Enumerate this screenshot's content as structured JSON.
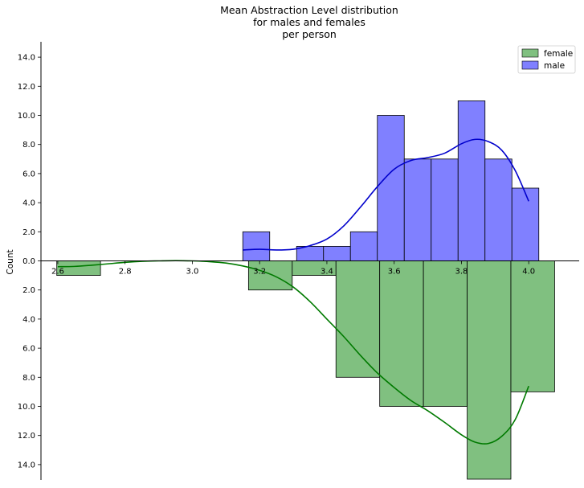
{
  "chart_data": {
    "type": "bar",
    "subtype": "mirrored histogram with KDE",
    "title_lines": [
      "Mean Abstraction Level distribution",
      "for males and females",
      "per person"
    ],
    "ylabel": "Count",
    "xlabel": "",
    "xlim": [
      2.55,
      4.15
    ],
    "ylim": [
      -15.2,
      15.1
    ],
    "x_ticks": [
      {
        "value": 2.6,
        "label": "2.6"
      },
      {
        "value": 2.8,
        "label": "2.8"
      },
      {
        "value": 3.0,
        "label": "3.0"
      },
      {
        "value": 3.2,
        "label": "3.2"
      },
      {
        "value": 3.4,
        "label": "3.4"
      },
      {
        "value": 3.6,
        "label": "3.6"
      },
      {
        "value": 3.8,
        "label": "3.8"
      },
      {
        "value": 4.0,
        "label": "4.0"
      }
    ],
    "y_ticks": [
      {
        "value": 14,
        "label": "14.0"
      },
      {
        "value": 12,
        "label": "12.0"
      },
      {
        "value": 10,
        "label": "10.0"
      },
      {
        "value": 8,
        "label": "8.0"
      },
      {
        "value": 6,
        "label": "6.0"
      },
      {
        "value": 4,
        "label": "4.0"
      },
      {
        "value": 2,
        "label": "2.0"
      },
      {
        "value": 0,
        "label": "0.0"
      },
      {
        "value": -2,
        "label": "2.0"
      },
      {
        "value": -4,
        "label": "4.0"
      },
      {
        "value": -6,
        "label": "6.0"
      },
      {
        "value": -8,
        "label": "8.0"
      },
      {
        "value": -10,
        "label": "10.0"
      },
      {
        "value": -12,
        "label": "12.0"
      },
      {
        "value": -14,
        "label": "14.0"
      }
    ],
    "legend_position": "top-right",
    "legend": [
      {
        "label": "female",
        "color": "#008000"
      },
      {
        "label": "male",
        "color": "#0000ff"
      }
    ],
    "series": [
      {
        "name": "male",
        "direction": "up",
        "fill": "#8080ff",
        "line_color": "#0000cc",
        "bins": [
          {
            "x0": 3.15,
            "x1": 3.23,
            "count": 2
          },
          {
            "x0": 3.31,
            "x1": 3.39,
            "count": 1
          },
          {
            "x0": 3.39,
            "x1": 3.47,
            "count": 1
          },
          {
            "x0": 3.47,
            "x1": 3.55,
            "count": 2
          },
          {
            "x0": 3.55,
            "x1": 3.63,
            "count": 10
          },
          {
            "x0": 3.63,
            "x1": 3.71,
            "count": 7
          },
          {
            "x0": 3.71,
            "x1": 3.79,
            "count": 7
          },
          {
            "x0": 3.79,
            "x1": 3.87,
            "count": 11
          },
          {
            "x0": 3.87,
            "x1": 3.95,
            "count": 7
          },
          {
            "x0": 3.95,
            "x1": 4.03,
            "count": 5
          }
        ],
        "kde": [
          [
            3.15,
            0.75
          ],
          [
            3.2,
            0.8
          ],
          [
            3.25,
            0.75
          ],
          [
            3.3,
            0.8
          ],
          [
            3.35,
            1.05
          ],
          [
            3.4,
            1.5
          ],
          [
            3.45,
            2.4
          ],
          [
            3.5,
            3.7
          ],
          [
            3.55,
            5.1
          ],
          [
            3.6,
            6.3
          ],
          [
            3.65,
            6.9
          ],
          [
            3.7,
            7.1
          ],
          [
            3.75,
            7.4
          ],
          [
            3.8,
            8.05
          ],
          [
            3.84,
            8.35
          ],
          [
            3.88,
            8.2
          ],
          [
            3.92,
            7.6
          ],
          [
            3.96,
            6.2
          ],
          [
            4.0,
            4.1
          ]
        ]
      },
      {
        "name": "female",
        "direction": "down",
        "fill": "#80c080",
        "line_color": "#007a00",
        "bins": [
          {
            "x0": 2.597,
            "x1": 2.727,
            "count": 1
          },
          {
            "x0": 3.167,
            "x1": 3.297,
            "count": 2
          },
          {
            "x0": 3.297,
            "x1": 3.427,
            "count": 1
          },
          {
            "x0": 3.427,
            "x1": 3.557,
            "count": 8
          },
          {
            "x0": 3.557,
            "x1": 3.687,
            "count": 10
          },
          {
            "x0": 3.687,
            "x1": 3.817,
            "count": 10
          },
          {
            "x0": 3.817,
            "x1": 3.947,
            "count": 15
          },
          {
            "x0": 3.947,
            "x1": 4.077,
            "count": 9
          }
        ],
        "kde": [
          [
            2.6,
            0.4
          ],
          [
            2.65,
            0.38
          ],
          [
            2.7,
            0.3
          ],
          [
            2.75,
            0.2
          ],
          [
            2.8,
            0.1
          ],
          [
            2.85,
            0.03
          ],
          [
            2.9,
            0.0
          ],
          [
            2.95,
            -0.02
          ],
          [
            3.0,
            0.0
          ],
          [
            3.05,
            0.05
          ],
          [
            3.1,
            0.15
          ],
          [
            3.15,
            0.35
          ],
          [
            3.2,
            0.65
          ],
          [
            3.25,
            1.1
          ],
          [
            3.3,
            1.8
          ],
          [
            3.35,
            2.8
          ],
          [
            3.4,
            4.0
          ],
          [
            3.45,
            5.2
          ],
          [
            3.5,
            6.5
          ],
          [
            3.55,
            7.7
          ],
          [
            3.6,
            8.7
          ],
          [
            3.65,
            9.6
          ],
          [
            3.7,
            10.3
          ],
          [
            3.75,
            11.1
          ],
          [
            3.8,
            11.95
          ],
          [
            3.84,
            12.45
          ],
          [
            3.88,
            12.55
          ],
          [
            3.92,
            12.05
          ],
          [
            3.96,
            10.9
          ],
          [
            4.0,
            8.6
          ]
        ]
      }
    ]
  }
}
